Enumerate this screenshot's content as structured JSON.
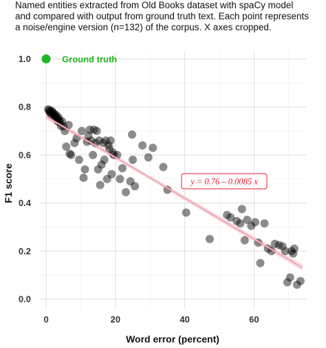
{
  "title": "Named entities extracted from Old Books dataset with spaCy model\nand compared with output from ground truth text. Each point represents\na noise/engine version (n=132) of the corpus. X axes cropped.",
  "chart_data": {
    "type": "scatter",
    "title": "Named entities extracted from Old Books dataset with spaCy model and compared with output from ground truth text. Each point represents a noise/engine version (n=132) of the corpus. X axes cropped.",
    "xlabel": "Word error (percent)",
    "ylabel": "F1 score",
    "xlim": [
      -2,
      75
    ],
    "ylim": [
      -0.04,
      1.03
    ],
    "x_ticks": [
      0,
      20,
      40,
      60
    ],
    "y_ticks": [
      0.0,
      0.2,
      0.4,
      0.6,
      0.8,
      1.0
    ],
    "x_tick_labels": [
      "0",
      "20",
      "40",
      "60"
    ],
    "y_tick_labels": [
      "0.0",
      "0.2",
      "0.4",
      "0.6",
      "0.8",
      "1.0"
    ],
    "grid": true,
    "colors": {
      "points": "#000000",
      "ground_truth": "#1db81d",
      "fit_line": "#f4a9b8",
      "fit_band": "#f7d3db",
      "annotation": "#e8182f"
    },
    "ground_truth_point": {
      "x": 0,
      "y": 1.0,
      "label": "Ground truth"
    },
    "fit": {
      "intercept": 0.76,
      "slope": -0.0085,
      "x_range": [
        0,
        74
      ],
      "label": "y = 0.76 – 0.0085 x"
    },
    "points": [
      {
        "x": 0.6,
        "y": 0.79
      },
      {
        "x": 0.8,
        "y": 0.785
      },
      {
        "x": 1.0,
        "y": 0.78
      },
      {
        "x": 1.2,
        "y": 0.775
      },
      {
        "x": 1.4,
        "y": 0.785
      },
      {
        "x": 1.6,
        "y": 0.77
      },
      {
        "x": 1.8,
        "y": 0.78
      },
      {
        "x": 2.0,
        "y": 0.775
      },
      {
        "x": 2.2,
        "y": 0.765
      },
      {
        "x": 2.4,
        "y": 0.77
      },
      {
        "x": 2.6,
        "y": 0.76
      },
      {
        "x": 2.8,
        "y": 0.755
      },
      {
        "x": 3.0,
        "y": 0.765
      },
      {
        "x": 3.2,
        "y": 0.75
      },
      {
        "x": 3.4,
        "y": 0.74
      },
      {
        "x": 3.6,
        "y": 0.755
      },
      {
        "x": 3.8,
        "y": 0.745
      },
      {
        "x": 4.0,
        "y": 0.735
      },
      {
        "x": 4.3,
        "y": 0.72
      },
      {
        "x": 4.6,
        "y": 0.74
      },
      {
        "x": 5.0,
        "y": 0.72
      },
      {
        "x": 5.4,
        "y": 0.7
      },
      {
        "x": 5.8,
        "y": 0.635
      },
      {
        "x": 6.5,
        "y": 0.725
      },
      {
        "x": 6.8,
        "y": 0.605
      },
      {
        "x": 7.2,
        "y": 0.6
      },
      {
        "x": 8.2,
        "y": 0.65
      },
      {
        "x": 8.8,
        "y": 0.67
      },
      {
        "x": 9.5,
        "y": 0.58
      },
      {
        "x": 10.3,
        "y": 0.7
      },
      {
        "x": 10.8,
        "y": 0.505
      },
      {
        "x": 11.2,
        "y": 0.54
      },
      {
        "x": 11.8,
        "y": 0.655
      },
      {
        "x": 12.2,
        "y": 0.68
      },
      {
        "x": 12.6,
        "y": 0.705
      },
      {
        "x": 13.0,
        "y": 0.66
      },
      {
        "x": 13.5,
        "y": 0.6
      },
      {
        "x": 13.8,
        "y": 0.705
      },
      {
        "x": 14.2,
        "y": 0.65
      },
      {
        "x": 14.6,
        "y": 0.7
      },
      {
        "x": 15.0,
        "y": 0.54
      },
      {
        "x": 15.3,
        "y": 0.66
      },
      {
        "x": 15.6,
        "y": 0.475
      },
      {
        "x": 16.0,
        "y": 0.56
      },
      {
        "x": 16.5,
        "y": 0.65
      },
      {
        "x": 16.8,
        "y": 0.58
      },
      {
        "x": 17.2,
        "y": 0.66
      },
      {
        "x": 17.6,
        "y": 0.5
      },
      {
        "x": 18.0,
        "y": 0.64
      },
      {
        "x": 18.3,
        "y": 0.625
      },
      {
        "x": 18.6,
        "y": 0.66
      },
      {
        "x": 18.9,
        "y": 0.52
      },
      {
        "x": 19.2,
        "y": 0.61
      },
      {
        "x": 19.5,
        "y": 0.6
      },
      {
        "x": 20.5,
        "y": 0.6
      },
      {
        "x": 21.3,
        "y": 0.5
      },
      {
        "x": 22.0,
        "y": 0.545
      },
      {
        "x": 23.0,
        "y": 0.445
      },
      {
        "x": 24.3,
        "y": 0.49
      },
      {
        "x": 24.8,
        "y": 0.685
      },
      {
        "x": 25.0,
        "y": 0.58
      },
      {
        "x": 25.6,
        "y": 0.47
      },
      {
        "x": 27.8,
        "y": 0.64
      },
      {
        "x": 29.5,
        "y": 0.59
      },
      {
        "x": 30.8,
        "y": 0.63
      },
      {
        "x": 33.8,
        "y": 0.55
      },
      {
        "x": 35.0,
        "y": 0.455
      },
      {
        "x": 40.4,
        "y": 0.36
      },
      {
        "x": 47.2,
        "y": 0.25
      },
      {
        "x": 52.2,
        "y": 0.35
      },
      {
        "x": 53.2,
        "y": 0.34
      },
      {
        "x": 55.0,
        "y": 0.325
      },
      {
        "x": 56.0,
        "y": 0.315
      },
      {
        "x": 56.5,
        "y": 0.375
      },
      {
        "x": 57.3,
        "y": 0.245
      },
      {
        "x": 58.0,
        "y": 0.33
      },
      {
        "x": 59.2,
        "y": 0.305
      },
      {
        "x": 60.3,
        "y": 0.32
      },
      {
        "x": 61.2,
        "y": 0.235
      },
      {
        "x": 61.8,
        "y": 0.15
      },
      {
        "x": 63.0,
        "y": 0.315
      },
      {
        "x": 64.0,
        "y": 0.21
      },
      {
        "x": 65.0,
        "y": 0.2
      },
      {
        "x": 66.0,
        "y": 0.23
      },
      {
        "x": 67.2,
        "y": 0.225
      },
      {
        "x": 68.2,
        "y": 0.22
      },
      {
        "x": 69.0,
        "y": 0.2
      },
      {
        "x": 69.6,
        "y": 0.07
      },
      {
        "x": 70.4,
        "y": 0.09
      },
      {
        "x": 70.8,
        "y": 0.2
      },
      {
        "x": 71.3,
        "y": 0.19
      },
      {
        "x": 71.6,
        "y": 0.21
      },
      {
        "x": 72.4,
        "y": 0.06
      },
      {
        "x": 73.4,
        "y": 0.075
      }
    ]
  }
}
